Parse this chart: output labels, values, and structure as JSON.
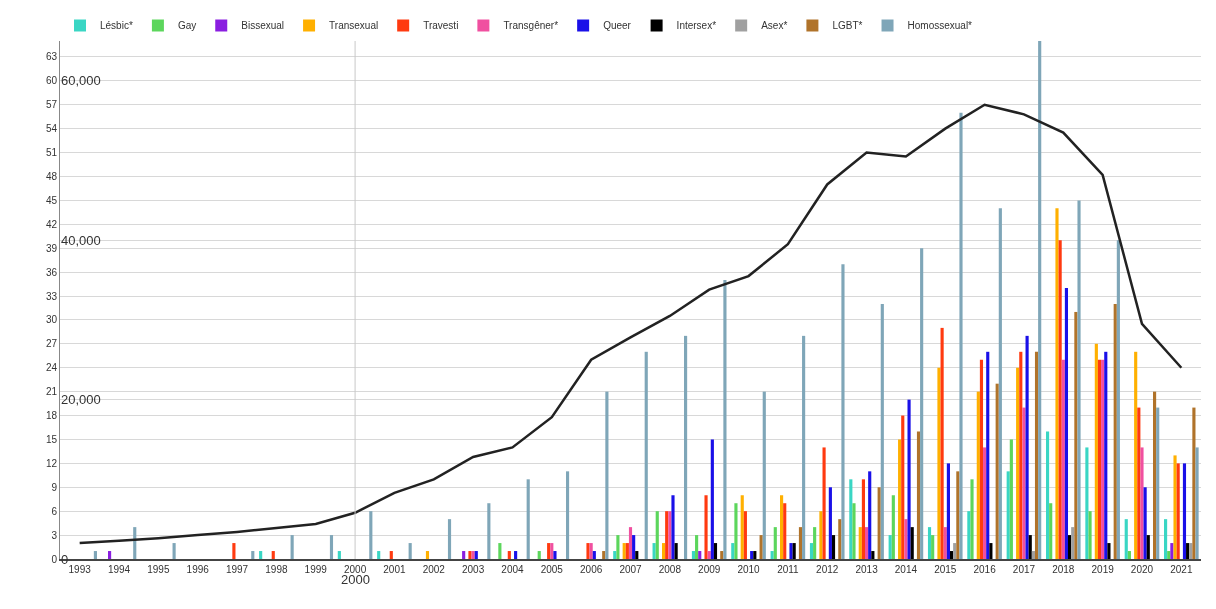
{
  "chart_data": {
    "type": "bar",
    "categories": [
      "1993",
      "1994",
      "1995",
      "1996",
      "1997",
      "1998",
      "1999",
      "2000",
      "2001",
      "2002",
      "2003",
      "2004",
      "2005",
      "2006",
      "2007",
      "2008",
      "2009",
      "2010",
      "2011",
      "2012",
      "2013",
      "2014",
      "2015",
      "2016",
      "2017",
      "2018",
      "2019",
      "2020",
      "2021"
    ],
    "series": [
      {
        "name": "Lésbic*",
        "color": "#3ad6c4",
        "values": [
          0,
          0,
          0,
          0,
          0,
          1,
          0,
          1,
          1,
          0,
          0,
          0,
          0,
          0,
          1,
          2,
          1,
          2,
          1,
          2,
          10,
          3,
          4,
          6,
          11,
          16,
          14,
          5,
          5
        ]
      },
      {
        "name": "Gay",
        "color": "#5cd65c",
        "values": [
          0,
          0,
          0,
          0,
          0,
          0,
          0,
          0,
          0,
          0,
          0,
          2,
          1,
          0,
          3,
          6,
          3,
          7,
          4,
          4,
          7,
          8,
          3,
          10,
          15,
          7,
          6,
          1,
          1
        ]
      },
      {
        "name": "Bissexual",
        "color": "#8a1ee0",
        "values": [
          0,
          1,
          0,
          0,
          0,
          0,
          0,
          0,
          0,
          0,
          1,
          0,
          0,
          0,
          0,
          0,
          1,
          0,
          0,
          0,
          0,
          0,
          0,
          0,
          0,
          0,
          0,
          0,
          2
        ]
      },
      {
        "name": "Transexual",
        "color": "#ffb000",
        "values": [
          0,
          0,
          0,
          0,
          0,
          0,
          0,
          0,
          0,
          1,
          0,
          0,
          0,
          0,
          2,
          2,
          0,
          8,
          8,
          6,
          4,
          15,
          24,
          21,
          24,
          44,
          27,
          26,
          13
        ]
      },
      {
        "name": "Travesti",
        "color": "#ff3a10",
        "values": [
          0,
          0,
          0,
          0,
          2,
          1,
          0,
          0,
          1,
          0,
          1,
          1,
          2,
          2,
          2,
          6,
          8,
          6,
          7,
          14,
          10,
          18,
          29,
          25,
          26,
          40,
          25,
          19,
          12
        ]
      },
      {
        "name": "Transgêner*",
        "color": "#f050a0",
        "values": [
          0,
          0,
          0,
          0,
          0,
          0,
          0,
          0,
          0,
          0,
          1,
          0,
          2,
          2,
          4,
          6,
          1,
          0,
          0,
          0,
          4,
          5,
          4,
          14,
          19,
          25,
          25,
          14,
          0
        ]
      },
      {
        "name": "Queer",
        "color": "#1a10e8",
        "values": [
          0,
          0,
          0,
          0,
          0,
          0,
          0,
          0,
          0,
          0,
          1,
          1,
          1,
          1,
          3,
          8,
          15,
          1,
          2,
          9,
          11,
          20,
          12,
          26,
          28,
          34,
          26,
          9,
          12
        ]
      },
      {
        "name": "Intersex*",
        "color": "#000000",
        "values": [
          0,
          0,
          0,
          0,
          0,
          0,
          0,
          0,
          0,
          0,
          0,
          0,
          0,
          0,
          1,
          2,
          2,
          1,
          2,
          3,
          1,
          4,
          1,
          2,
          3,
          3,
          2,
          3,
          2
        ]
      },
      {
        "name": "Asex*",
        "color": "#a0a0a0",
        "values": [
          0,
          0,
          0,
          0,
          0,
          0,
          0,
          0,
          0,
          0,
          0,
          0,
          0,
          0,
          0,
          0,
          0,
          0,
          0,
          0,
          0,
          0,
          2,
          0,
          1,
          4,
          0,
          0,
          2
        ]
      },
      {
        "name": "LGBT*",
        "color": "#b0732a",
        "values": [
          0,
          0,
          0,
          0,
          0,
          0,
          0,
          0,
          0,
          0,
          0,
          0,
          0,
          1,
          0,
          0,
          1,
          3,
          4,
          5,
          9,
          16,
          11,
          22,
          26,
          31,
          32,
          21,
          19
        ]
      },
      {
        "name": "Homossexual*",
        "color": "#7fa6b8",
        "values": [
          1,
          4,
          2,
          0,
          1,
          3,
          3,
          6,
          2,
          5,
          7,
          10,
          11,
          21,
          26,
          28,
          35,
          21,
          28,
          37,
          32,
          39,
          56,
          44,
          65,
          45,
          40,
          19,
          14
        ]
      },
      {
        "type": "line",
        "axis": "y2",
        "color": "#222222",
        "values": [
          2000,
          2300,
          2600,
          3000,
          3400,
          3900,
          4400,
          5800,
          8300,
          10000,
          12800,
          14000,
          17800,
          25000,
          27800,
          30500,
          33800,
          35500,
          39500,
          47000,
          51000,
          50500,
          54000,
          57000,
          55800,
          53500,
          48200,
          29500,
          24000
        ]
      }
    ],
    "ylim": [
      0,
      65
    ],
    "yticks": [
      0,
      3,
      6,
      9,
      12,
      15,
      18,
      21,
      24,
      27,
      30,
      33,
      36,
      39,
      42,
      45,
      48,
      51,
      54,
      57,
      60,
      63
    ],
    "y2lim": [
      0,
      65000
    ],
    "y2ticks": [
      0,
      {
        "value": 20000,
        "label": "20,000"
      },
      {
        "value": 40000,
        "label": "40,000"
      },
      {
        "value": 60000,
        "label": "60,000"
      }
    ],
    "ref_lines": [
      {
        "axis": "x",
        "value": "2000",
        "label": "2000",
        "color": "#c8c8c8"
      }
    ],
    "grid": "y",
    "legend": "top"
  }
}
